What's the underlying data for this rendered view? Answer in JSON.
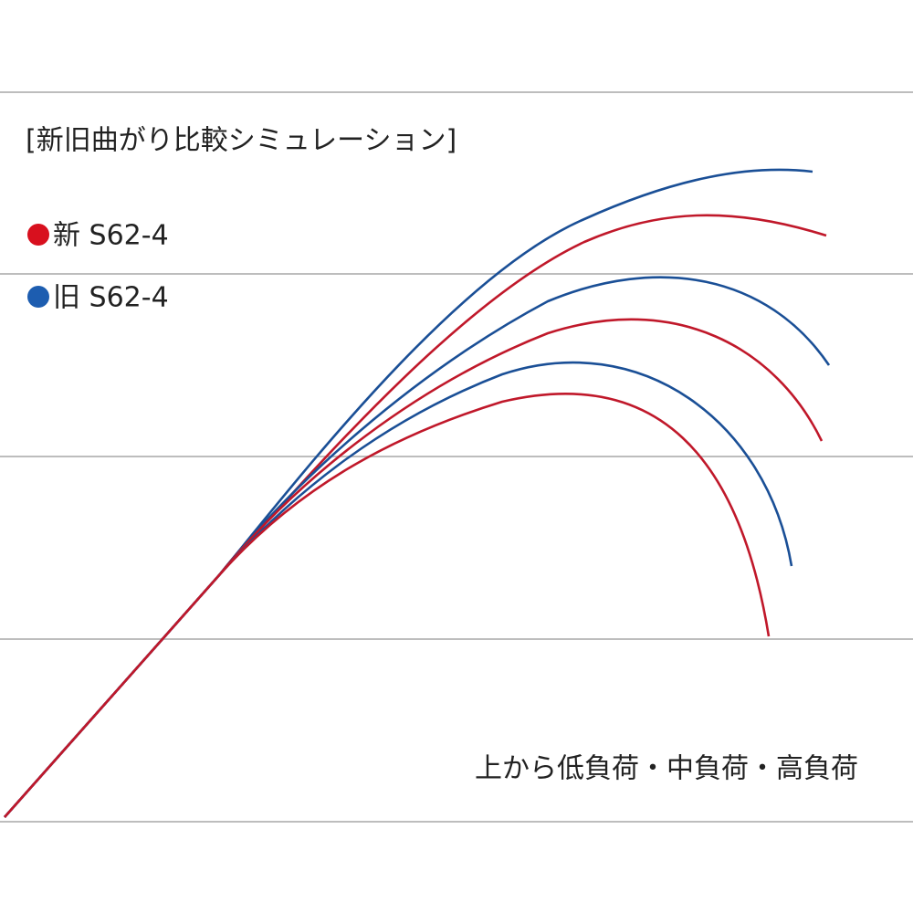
{
  "title": "[新旧曲がり比較シミュレーション]",
  "legend": [
    {
      "label": "新 S62-4"
    },
    {
      "label": "旧 S62-4"
    }
  ],
  "note": "上から低負荷・中負荷・高負荷"
}
